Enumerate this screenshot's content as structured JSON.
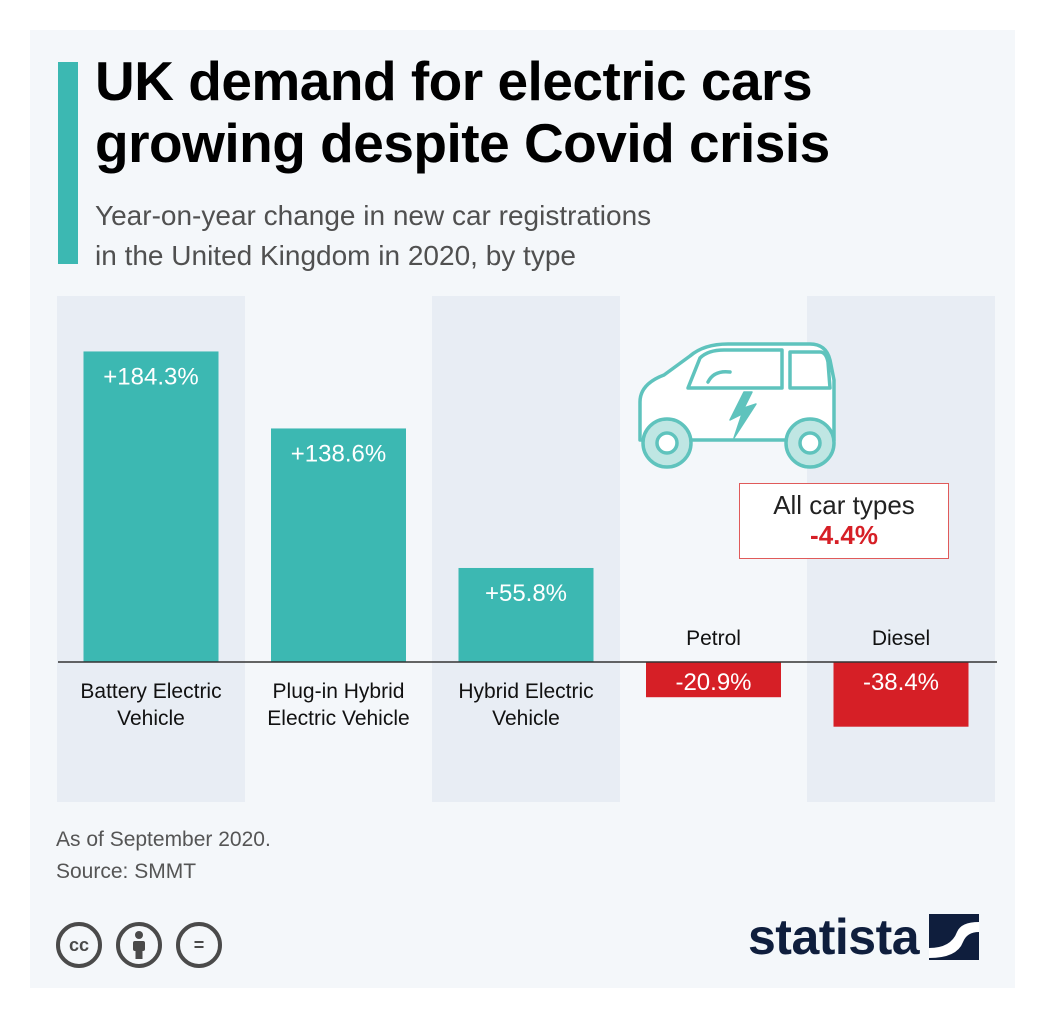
{
  "title": "UK demand for electric cars\ngrowing despite Covid crisis",
  "subtitle": "Year-on-year change in new car registrations\nin the United Kingdom in 2020, by type",
  "colors": {
    "accent": "#3cb8b2",
    "positive": "#3cb8b2",
    "negative": "#d61f26",
    "band": "#e8edf4",
    "background": "#f4f7fa",
    "brand": "#0f1e3d"
  },
  "chart_data": {
    "type": "bar",
    "title": "UK demand for electric cars growing despite Covid crisis",
    "subtitle": "Year-on-year change in new car registrations in the United Kingdom in 2020, by type",
    "unit": "%",
    "categories": [
      "Battery Electric Vehicle",
      "Plug-in Hybrid Electric Vehicle",
      "Hybrid Electric Vehicle",
      "Petrol",
      "Diesel"
    ],
    "category_lines": [
      [
        "Battery Electric",
        "Vehicle"
      ],
      [
        "Plug-in Hybrid",
        "Electric Vehicle"
      ],
      [
        "Hybrid Electric",
        "Vehicle"
      ],
      [
        "Petrol"
      ],
      [
        "Diesel"
      ]
    ],
    "values": [
      184.3,
      138.6,
      55.8,
      -20.9,
      -38.4
    ],
    "value_labels": [
      "+184.3%",
      "+138.6%",
      "+55.8%",
      "-20.9%",
      "-38.4%"
    ],
    "grid": false,
    "legend": "none",
    "annotation": {
      "label": "All car types",
      "value": -4.4,
      "value_label": "-4.4%"
    }
  },
  "icons": [
    "electric-car-icon",
    "creative-commons-icon",
    "attribution-icon",
    "no-derivatives-icon",
    "statista-logo-icon"
  ],
  "footer": {
    "note": "As of September 2020.\nSource: SMMT",
    "license_icons": [
      {
        "name": "creative-commons-icon",
        "glyph": "cc"
      },
      {
        "name": "attribution-icon",
        "glyph": ""
      },
      {
        "name": "no-derivatives-icon",
        "glyph": "="
      }
    ],
    "brand": "statista"
  }
}
